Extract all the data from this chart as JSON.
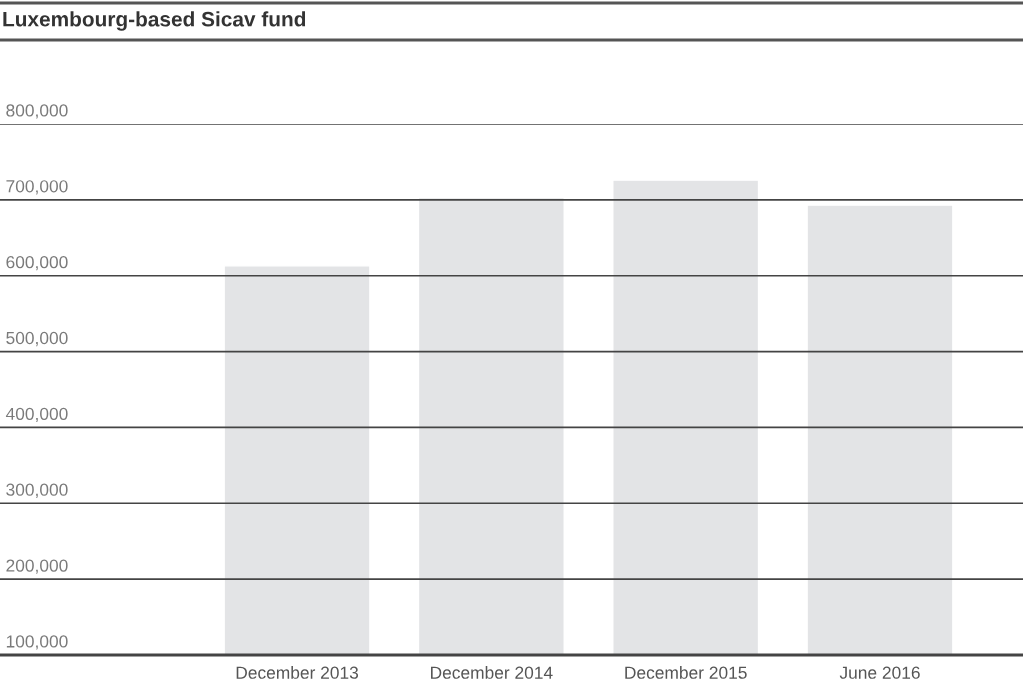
{
  "chart_data": {
    "type": "bar",
    "title": "Luxembourg-based Sicav fund",
    "categories": [
      "December 2013",
      "December 2014",
      "December 2015",
      "June 2016"
    ],
    "values": [
      613000,
      703000,
      726000,
      693000
    ],
    "color": "#e3e4e6",
    "ylim": [
      100000,
      800000
    ],
    "yticks": [
      {
        "value": 100000,
        "label": "100,000"
      },
      {
        "value": 200000,
        "label": "200,000"
      },
      {
        "value": 300000,
        "label": "300,000"
      },
      {
        "value": 400000,
        "label": "400,000"
      },
      {
        "value": 500000,
        "label": "500,000"
      },
      {
        "value": 600000,
        "label": "600,000"
      },
      {
        "value": 700000,
        "label": "700,000"
      },
      {
        "value": 800000,
        "label": "800,000"
      }
    ],
    "grid": "y"
  }
}
